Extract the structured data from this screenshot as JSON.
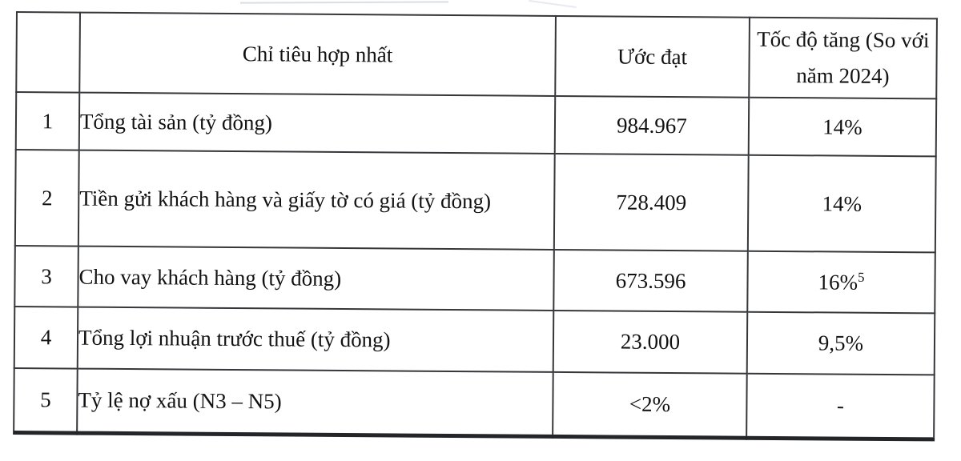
{
  "table": {
    "headers": {
      "stt": "",
      "indicator": "Chỉ tiêu hợp nhất",
      "estimate": "Ước đạt",
      "growth": "Tốc độ tăng (So với năm 2024)"
    },
    "rows": [
      {
        "stt": "1",
        "indicator": "Tổng tài sản (tỷ đồng)",
        "estimate": "984.967",
        "growth": "14%",
        "growth_sup": ""
      },
      {
        "stt": "2",
        "indicator": "Tiền gửi khách hàng và giấy tờ có giá (tỷ đồng)",
        "estimate": "728.409",
        "growth": "14%",
        "growth_sup": ""
      },
      {
        "stt": "3",
        "indicator": "Cho vay khách hàng (tỷ đồng)",
        "estimate": "673.596",
        "growth": "16%",
        "growth_sup": "5"
      },
      {
        "stt": "4",
        "indicator": "Tổng lợi nhuận trước thuế (tỷ đồng)",
        "estimate": "23.000",
        "growth": "9,5%",
        "growth_sup": ""
      },
      {
        "stt": "5",
        "indicator": "Tỷ lệ nợ xấu (N3 – N5)",
        "estimate": "<2%",
        "growth": "-",
        "growth_sup": ""
      }
    ]
  }
}
